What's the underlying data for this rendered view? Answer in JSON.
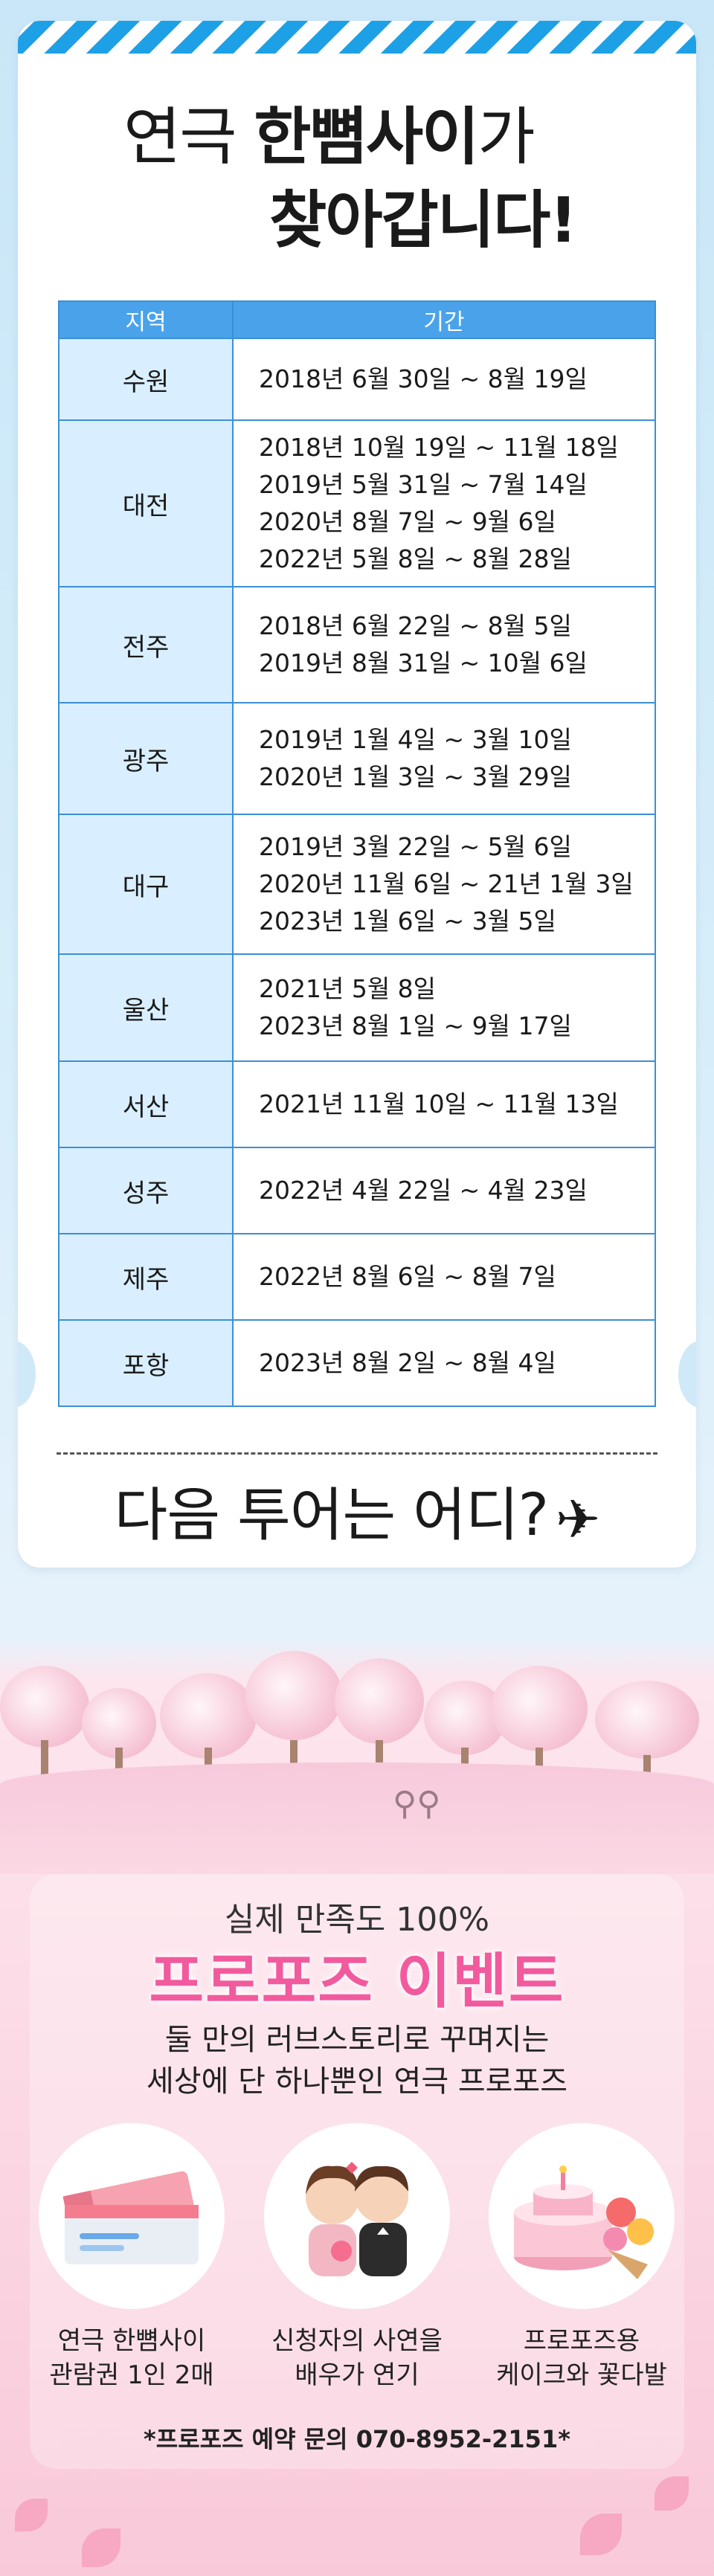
{
  "header": {
    "title_line1_prefix": "연극",
    "title_line1_highlight": "한뼘사이",
    "title_line1_suffix": "가",
    "title_line2": "찾아갑니다!"
  },
  "table": {
    "headers": [
      "지역",
      "기간"
    ],
    "rows": [
      {
        "region": "수원",
        "periods": [
          "2018년 6월 30일 ~ 8월 19일"
        ]
      },
      {
        "region": "대전",
        "periods": [
          "2018년 10월 19일 ~ 11월 18일",
          "2019년 5월 31일 ~ 7월 14일",
          "2020년 8월 7일 ~ 9월 6일",
          "2022년 5월 8일 ~ 8월 28일"
        ]
      },
      {
        "region": "전주",
        "periods": [
          "2018년 6월 22일 ~ 8월 5일",
          "2019년 8월 31일 ~ 10월 6일"
        ]
      },
      {
        "region": "광주",
        "periods": [
          "2019년 1월 4일 ~ 3월 10일",
          "2020년 1월 3일 ~ 3월 29일"
        ]
      },
      {
        "region": "대구",
        "periods": [
          "2019년 3월 22일 ~ 5월 6일",
          "2020년 11월 6일 ~ 21년 1월 3일",
          "2023년 1월 6일 ~ 3월 5일"
        ]
      },
      {
        "region": "울산",
        "periods": [
          "2021년 5월 8일",
          "2023년 8월 1일 ~ 9월 17일"
        ]
      },
      {
        "region": "서산",
        "periods": [
          "2021년 11월 10일 ~ 11월 13일"
        ]
      },
      {
        "region": "성주",
        "periods": [
          "2022년 4월 22일 ~ 4월 23일"
        ]
      },
      {
        "region": "제주",
        "periods": [
          "2022년 8월 6일 ~ 8월 7일"
        ]
      },
      {
        "region": "포항",
        "periods": [
          "2023년 8월 2일 ~ 8월 4일"
        ]
      }
    ]
  },
  "next_tour": {
    "text": "다음 투어는 어디?",
    "icon": "airplane-icon"
  },
  "event": {
    "subtitle": "실제 만족도 100%",
    "title": "프로포즈 이벤트",
    "desc_line1": "둘 만의 러브스토리로 꾸며지는",
    "desc_line2": "세상에 단 하나뿐인 연극 프로포즈",
    "benefits": [
      {
        "icon": "ticket-icon",
        "line1": "연극 한뼘사이",
        "line2": "관람권 1인 2매"
      },
      {
        "icon": "couple-icon",
        "line1": "신청자의 사연을",
        "line2": "배우가 연기"
      },
      {
        "icon": "cake-flowers-icon",
        "line1": "프로포즈용",
        "line2": "케이크와 꽃다발"
      }
    ],
    "contact": "*프로포즈 예약 문의 070-8952-2151*"
  },
  "colors": {
    "accent_blue": "#1ea0e6",
    "table_header": "#4aa3ea",
    "region_cell": "#d9efff",
    "event_pink": "#f25a9e"
  }
}
